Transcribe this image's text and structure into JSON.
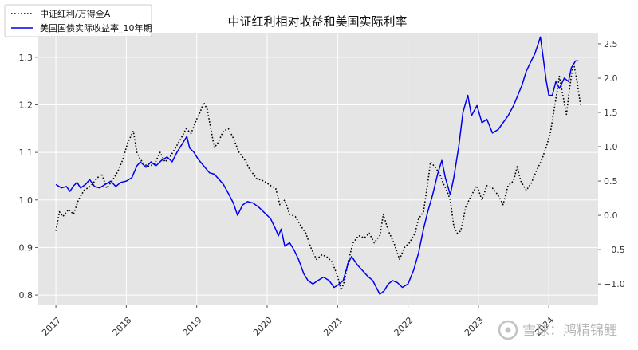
{
  "chart_data": {
    "type": "line",
    "title": "中证红利相对收益和美国实际利率",
    "x_range": [
      2016.75,
      2024.7
    ],
    "y_left_range": [
      0.78,
      1.35
    ],
    "y_right_range": [
      -1.3,
      2.65
    ],
    "x_ticks": [
      {
        "value": 2017,
        "label": "2017"
      },
      {
        "value": 2018,
        "label": "2018"
      },
      {
        "value": 2019,
        "label": "2019"
      },
      {
        "value": 2020,
        "label": "2020"
      },
      {
        "value": 2021,
        "label": "2021"
      },
      {
        "value": 2022,
        "label": "2022"
      },
      {
        "value": 2023,
        "label": "2023"
      },
      {
        "value": 2024,
        "label": "2024"
      }
    ],
    "y_left_ticks": [
      {
        "value": 0.8,
        "label": "0.8"
      },
      {
        "value": 0.9,
        "label": "0.9"
      },
      {
        "value": 1.0,
        "label": "1.0"
      },
      {
        "value": 1.1,
        "label": "1.1"
      },
      {
        "value": 1.2,
        "label": "1.2"
      },
      {
        "value": 1.3,
        "label": "1.3"
      }
    ],
    "y_right_ticks": [
      {
        "value": -1.0,
        "label": "−1.0"
      },
      {
        "value": -0.5,
        "label": "−0.5"
      },
      {
        "value": 0.0,
        "label": "0.0"
      },
      {
        "value": 0.5,
        "label": "0.5"
      },
      {
        "value": 1.0,
        "label": "1.0"
      },
      {
        "value": 1.5,
        "label": "1.5"
      },
      {
        "value": 2.0,
        "label": "2.0"
      },
      {
        "value": 2.5,
        "label": "2.5"
      }
    ],
    "grid": true,
    "legend_position": "top-left",
    "series": [
      {
        "name": "中证红利/万得全A",
        "axis": "left",
        "style": "dotted",
        "color": "#000000",
        "points": [
          [
            2017.0,
            0.935
          ],
          [
            2017.05,
            0.975
          ],
          [
            2017.1,
            0.965
          ],
          [
            2017.18,
            0.98
          ],
          [
            2017.25,
            0.97
          ],
          [
            2017.32,
            1.0
          ],
          [
            2017.4,
            1.02
          ],
          [
            2017.5,
            1.03
          ],
          [
            2017.58,
            1.045
          ],
          [
            2017.65,
            1.055
          ],
          [
            2017.72,
            1.025
          ],
          [
            2017.8,
            1.04
          ],
          [
            2017.88,
            1.06
          ],
          [
            2017.95,
            1.085
          ],
          [
            2018.02,
            1.12
          ],
          [
            2018.1,
            1.145
          ],
          [
            2018.15,
            1.1
          ],
          [
            2018.2,
            1.085
          ],
          [
            2018.3,
            1.07
          ],
          [
            2018.4,
            1.075
          ],
          [
            2018.48,
            1.1
          ],
          [
            2018.55,
            1.08
          ],
          [
            2018.62,
            1.09
          ],
          [
            2018.7,
            1.11
          ],
          [
            2018.78,
            1.13
          ],
          [
            2018.85,
            1.15
          ],
          [
            2018.92,
            1.14
          ],
          [
            2019.0,
            1.17
          ],
          [
            2019.05,
            1.185
          ],
          [
            2019.1,
            1.205
          ],
          [
            2019.15,
            1.19
          ],
          [
            2019.2,
            1.15
          ],
          [
            2019.25,
            1.11
          ],
          [
            2019.3,
            1.12
          ],
          [
            2019.38,
            1.145
          ],
          [
            2019.45,
            1.15
          ],
          [
            2019.52,
            1.13
          ],
          [
            2019.6,
            1.1
          ],
          [
            2019.68,
            1.085
          ],
          [
            2019.75,
            1.065
          ],
          [
            2019.85,
            1.045
          ],
          [
            2019.95,
            1.04
          ],
          [
            2020.05,
            1.03
          ],
          [
            2020.12,
            1.025
          ],
          [
            2020.18,
            0.99
          ],
          [
            2020.25,
            1.0
          ],
          [
            2020.32,
            0.97
          ],
          [
            2020.4,
            0.965
          ],
          [
            2020.48,
            0.945
          ],
          [
            2020.55,
            0.93
          ],
          [
            2020.62,
            0.9
          ],
          [
            2020.7,
            0.875
          ],
          [
            2020.78,
            0.885
          ],
          [
            2020.85,
            0.88
          ],
          [
            2020.92,
            0.87
          ],
          [
            2021.0,
            0.84
          ],
          [
            2021.05,
            0.81
          ],
          [
            2021.1,
            0.83
          ],
          [
            2021.15,
            0.87
          ],
          [
            2021.22,
            0.91
          ],
          [
            2021.3,
            0.925
          ],
          [
            2021.38,
            0.92
          ],
          [
            2021.45,
            0.93
          ],
          [
            2021.52,
            0.91
          ],
          [
            2021.6,
            0.925
          ],
          [
            2021.65,
            0.97
          ],
          [
            2021.72,
            0.935
          ],
          [
            2021.8,
            0.91
          ],
          [
            2021.88,
            0.875
          ],
          [
            2021.95,
            0.9
          ],
          [
            2022.02,
            0.91
          ],
          [
            2022.1,
            0.93
          ],
          [
            2022.15,
            0.96
          ],
          [
            2022.22,
            0.975
          ],
          [
            2022.28,
            1.035
          ],
          [
            2022.32,
            1.08
          ],
          [
            2022.38,
            1.07
          ],
          [
            2022.45,
            1.055
          ],
          [
            2022.5,
            1.035
          ],
          [
            2022.55,
            1.02
          ],
          [
            2022.6,
            1.0
          ],
          [
            2022.65,
            0.945
          ],
          [
            2022.7,
            0.93
          ],
          [
            2022.75,
            0.935
          ],
          [
            2022.82,
            0.985
          ],
          [
            2022.9,
            1.01
          ],
          [
            2022.98,
            1.03
          ],
          [
            2023.05,
            1.0
          ],
          [
            2023.12,
            1.03
          ],
          [
            2023.2,
            1.025
          ],
          [
            2023.28,
            1.01
          ],
          [
            2023.35,
            0.99
          ],
          [
            2023.42,
            1.03
          ],
          [
            2023.5,
            1.04
          ],
          [
            2023.55,
            1.07
          ],
          [
            2023.6,
            1.04
          ],
          [
            2023.68,
            1.02
          ],
          [
            2023.75,
            1.035
          ],
          [
            2023.82,
            1.06
          ],
          [
            2023.9,
            1.085
          ],
          [
            2023.96,
            1.11
          ],
          [
            2024.02,
            1.14
          ],
          [
            2024.08,
            1.195
          ],
          [
            2024.12,
            1.23
          ],
          [
            2024.15,
            1.26
          ],
          [
            2024.2,
            1.22
          ],
          [
            2024.25,
            1.18
          ],
          [
            2024.3,
            1.24
          ],
          [
            2024.35,
            1.29
          ],
          [
            2024.4,
            1.25
          ],
          [
            2024.45,
            1.2
          ]
        ]
      },
      {
        "name": "美国国债实际收益率_10年期",
        "axis": "right",
        "style": "solid",
        "color": "#0000ee",
        "points": [
          [
            2017.0,
            0.45
          ],
          [
            2017.08,
            0.4
          ],
          [
            2017.15,
            0.42
          ],
          [
            2017.2,
            0.35
          ],
          [
            2017.25,
            0.43
          ],
          [
            2017.3,
            0.48
          ],
          [
            2017.35,
            0.4
          ],
          [
            2017.42,
            0.45
          ],
          [
            2017.48,
            0.52
          ],
          [
            2017.55,
            0.42
          ],
          [
            2017.62,
            0.4
          ],
          [
            2017.7,
            0.45
          ],
          [
            2017.78,
            0.5
          ],
          [
            2017.85,
            0.42
          ],
          [
            2017.92,
            0.48
          ],
          [
            2018.0,
            0.5
          ],
          [
            2018.08,
            0.55
          ],
          [
            2018.15,
            0.72
          ],
          [
            2018.2,
            0.78
          ],
          [
            2018.28,
            0.7
          ],
          [
            2018.35,
            0.78
          ],
          [
            2018.42,
            0.72
          ],
          [
            2018.5,
            0.8
          ],
          [
            2018.58,
            0.85
          ],
          [
            2018.65,
            0.78
          ],
          [
            2018.72,
            0.92
          ],
          [
            2018.8,
            1.05
          ],
          [
            2018.86,
            1.15
          ],
          [
            2018.9,
            0.98
          ],
          [
            2018.96,
            0.92
          ],
          [
            2019.02,
            0.82
          ],
          [
            2019.1,
            0.72
          ],
          [
            2019.18,
            0.62
          ],
          [
            2019.25,
            0.6
          ],
          [
            2019.32,
            0.52
          ],
          [
            2019.38,
            0.45
          ],
          [
            2019.45,
            0.32
          ],
          [
            2019.52,
            0.18
          ],
          [
            2019.58,
            0.0
          ],
          [
            2019.65,
            0.15
          ],
          [
            2019.72,
            0.2
          ],
          [
            2019.8,
            0.18
          ],
          [
            2019.88,
            0.12
          ],
          [
            2019.95,
            0.05
          ],
          [
            2020.05,
            -0.05
          ],
          [
            2020.12,
            -0.2
          ],
          [
            2020.16,
            -0.3
          ],
          [
            2020.2,
            -0.2
          ],
          [
            2020.25,
            -0.45
          ],
          [
            2020.32,
            -0.4
          ],
          [
            2020.38,
            -0.5
          ],
          [
            2020.45,
            -0.65
          ],
          [
            2020.52,
            -0.85
          ],
          [
            2020.58,
            -0.95
          ],
          [
            2020.65,
            -1.0
          ],
          [
            2020.72,
            -0.95
          ],
          [
            2020.8,
            -0.9
          ],
          [
            2020.88,
            -0.95
          ],
          [
            2020.95,
            -1.05
          ],
          [
            2021.0,
            -1.02
          ],
          [
            2021.08,
            -0.95
          ],
          [
            2021.15,
            -0.7
          ],
          [
            2021.2,
            -0.6
          ],
          [
            2021.28,
            -0.72
          ],
          [
            2021.35,
            -0.8
          ],
          [
            2021.42,
            -0.88
          ],
          [
            2021.5,
            -0.95
          ],
          [
            2021.55,
            -1.05
          ],
          [
            2021.6,
            -1.15
          ],
          [
            2021.66,
            -1.1
          ],
          [
            2021.72,
            -1.0
          ],
          [
            2021.78,
            -0.95
          ],
          [
            2021.85,
            -0.98
          ],
          [
            2021.92,
            -1.05
          ],
          [
            2022.0,
            -1.0
          ],
          [
            2022.08,
            -0.8
          ],
          [
            2022.15,
            -0.55
          ],
          [
            2022.22,
            -0.2
          ],
          [
            2022.28,
            0.05
          ],
          [
            2022.35,
            0.3
          ],
          [
            2022.42,
            0.6
          ],
          [
            2022.48,
            0.8
          ],
          [
            2022.53,
            0.55
          ],
          [
            2022.6,
            0.3
          ],
          [
            2022.65,
            0.55
          ],
          [
            2022.72,
            1.0
          ],
          [
            2022.78,
            1.5
          ],
          [
            2022.85,
            1.75
          ],
          [
            2022.9,
            1.45
          ],
          [
            2022.98,
            1.6
          ],
          [
            2023.05,
            1.35
          ],
          [
            2023.12,
            1.4
          ],
          [
            2023.2,
            1.2
          ],
          [
            2023.28,
            1.25
          ],
          [
            2023.35,
            1.35
          ],
          [
            2023.42,
            1.45
          ],
          [
            2023.5,
            1.6
          ],
          [
            2023.56,
            1.75
          ],
          [
            2023.62,
            1.9
          ],
          [
            2023.68,
            2.1
          ],
          [
            2023.75,
            2.25
          ],
          [
            2023.8,
            2.35
          ],
          [
            2023.85,
            2.5
          ],
          [
            2023.88,
            2.6
          ],
          [
            2023.92,
            2.3
          ],
          [
            2023.96,
            1.98
          ],
          [
            2024.0,
            1.75
          ],
          [
            2024.05,
            1.75
          ],
          [
            2024.1,
            1.95
          ],
          [
            2024.15,
            1.85
          ],
          [
            2024.22,
            2.0
          ],
          [
            2024.28,
            1.95
          ],
          [
            2024.32,
            2.15
          ],
          [
            2024.38,
            2.25
          ],
          [
            2024.42,
            2.25
          ]
        ]
      }
    ],
    "watermark": "雪球：鸿精锦鲤"
  }
}
